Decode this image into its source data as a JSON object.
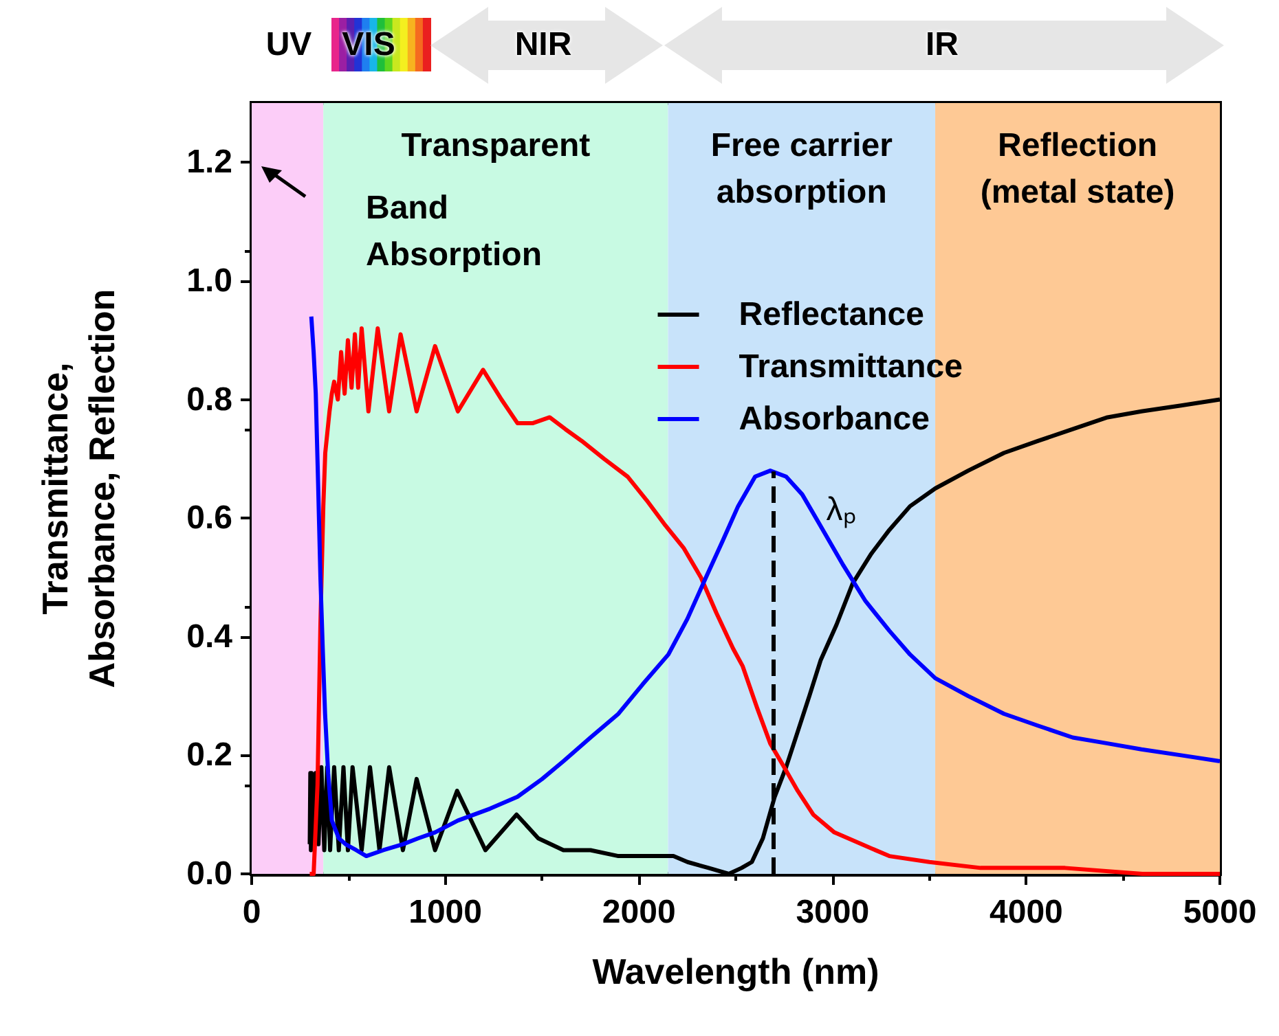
{
  "chart_data": {
    "type": "line",
    "xlabel": "Wavelength (nm)",
    "ylabel": "Transmittance,\nAbsorbance, Reflection",
    "xlim": [
      0,
      5000
    ],
    "xticks": [
      0,
      1000,
      2000,
      3000,
      4000,
      5000
    ],
    "ylim": [
      0,
      1.3
    ],
    "yticks": [
      {
        "value": 0,
        "label": "0.0"
      },
      {
        "value": 0.2,
        "label": "0.2"
      },
      {
        "value": 0.4,
        "label": "0.4"
      },
      {
        "value": 0.6,
        "label": "0.6"
      },
      {
        "value": 0.8,
        "label": "0.8"
      },
      {
        "value": 1.0,
        "label": "1.0"
      },
      {
        "value": 1.2,
        "label": "1.2"
      }
    ],
    "legend": "top right",
    "marker": "none",
    "series": [
      {
        "name": "Reflectance",
        "color": "#000000",
        "x": [
          300,
          303,
          306,
          309,
          312,
          315,
          320,
          330,
          345,
          360,
          375,
          390,
          405,
          426,
          450,
          474,
          497,
          521,
          568,
          611,
          660,
          710,
          781,
          852,
          947,
          1061,
          1207,
          1368,
          1480,
          1610,
          1750,
          1894,
          2040,
          2178,
          2251,
          2360,
          2464,
          2530,
          2583,
          2640,
          2701,
          2760,
          2820,
          2880,
          2938,
          3020,
          3104,
          3200,
          3293,
          3400,
          3530,
          3700,
          3885,
          4060,
          4240,
          4420,
          4595,
          4800,
          5000
        ],
        "values": [
          0.05,
          0.17,
          0.04,
          0.17,
          0.05,
          0.16,
          0.06,
          0.17,
          0.05,
          0.18,
          0.04,
          0.18,
          0.04,
          0.18,
          0.04,
          0.18,
          0.04,
          0.18,
          0.04,
          0.18,
          0.04,
          0.18,
          0.04,
          0.16,
          0.04,
          0.14,
          0.04,
          0.1,
          0.06,
          0.04,
          0.04,
          0.03,
          0.03,
          0.03,
          0.02,
          0.01,
          0,
          0.01,
          0.02,
          0.06,
          0.13,
          0.18,
          0.24,
          0.3,
          0.36,
          0.42,
          0.49,
          0.54,
          0.58,
          0.62,
          0.65,
          0.68,
          0.71,
          0.73,
          0.75,
          0.77,
          0.78,
          0.79,
          0.8
        ]
      },
      {
        "name": "Transmittance",
        "color": "#ff0000",
        "x": [
          300,
          320,
          340,
          355,
          370,
          380,
          402,
          414,
          426,
          445,
          462,
          480,
          497,
          516,
          533,
          550,
          568,
          603,
          651,
          710,
          769,
          852,
          947,
          1065,
          1195,
          1290,
          1373,
          1450,
          1539,
          1620,
          1705,
          1820,
          1941,
          2040,
          2131,
          2230,
          2320,
          2400,
          2486,
          2536,
          2610,
          2678,
          2750,
          2820,
          2900,
          3009,
          3150,
          3293,
          3500,
          3764,
          4200,
          4600,
          5000
        ],
        "values": [
          0,
          0,
          0.15,
          0.42,
          0.62,
          0.71,
          0.78,
          0.81,
          0.83,
          0.8,
          0.88,
          0.81,
          0.9,
          0.82,
          0.91,
          0.82,
          0.92,
          0.78,
          0.92,
          0.78,
          0.91,
          0.78,
          0.89,
          0.78,
          0.85,
          0.8,
          0.76,
          0.76,
          0.77,
          0.75,
          0.73,
          0.7,
          0.67,
          0.63,
          0.59,
          0.55,
          0.5,
          0.44,
          0.38,
          0.35,
          0.28,
          0.22,
          0.18,
          0.14,
          0.1,
          0.07,
          0.05,
          0.03,
          0.02,
          0.01,
          0.01,
          0,
          0
        ]
      },
      {
        "name": "Absorbance",
        "color": "#0000ff",
        "x": [
          308,
          320,
          331,
          343,
          355,
          367,
          379,
          395,
          414,
          450,
          485,
          540,
          592,
          680,
          781,
          860,
          947,
          1065,
          1231,
          1373,
          1500,
          1610,
          1750,
          1894,
          2020,
          2152,
          2250,
          2346,
          2430,
          2512,
          2600,
          2678,
          2760,
          2843,
          2950,
          3056,
          3170,
          3293,
          3400,
          3530,
          3700,
          3885,
          4060,
          4240,
          4420,
          4595,
          4800,
          5000
        ],
        "values": [
          0.94,
          0.88,
          0.81,
          0.66,
          0.5,
          0.38,
          0.27,
          0.17,
          0.09,
          0.06,
          0.05,
          0.04,
          0.03,
          0.04,
          0.05,
          0.06,
          0.07,
          0.09,
          0.11,
          0.13,
          0.16,
          0.19,
          0.23,
          0.27,
          0.32,
          0.37,
          0.43,
          0.5,
          0.56,
          0.62,
          0.67,
          0.68,
          0.67,
          0.64,
          0.58,
          0.52,
          0.46,
          0.41,
          0.37,
          0.33,
          0.3,
          0.27,
          0.25,
          0.23,
          0.22,
          0.21,
          0.2,
          0.19
        ]
      }
    ],
    "bands": [
      {
        "axis": "x",
        "from": 0,
        "to": 370,
        "label": null,
        "color": "#fccdf8"
      },
      {
        "axis": "x",
        "from": 370,
        "to": 2150,
        "label": "Transparent",
        "color": "#c8fae3"
      },
      {
        "axis": "x",
        "from": 2150,
        "to": 3530,
        "label": "Free carrier\nabsorption",
        "color": "#c8e3fa"
      },
      {
        "axis": "x",
        "from": 3530,
        "to": 5000,
        "label": "Reflection\n(metal state)",
        "color": "#fec995"
      }
    ],
    "ref_lines": [
      {
        "axis": "x",
        "value": 2690,
        "label": "λₚ",
        "color": "#000000",
        "line_style": "dashed"
      }
    ],
    "annotations": [
      "UV",
      "VIS",
      "NIR",
      "IR",
      "Band\nAbsorption"
    ]
  }
}
